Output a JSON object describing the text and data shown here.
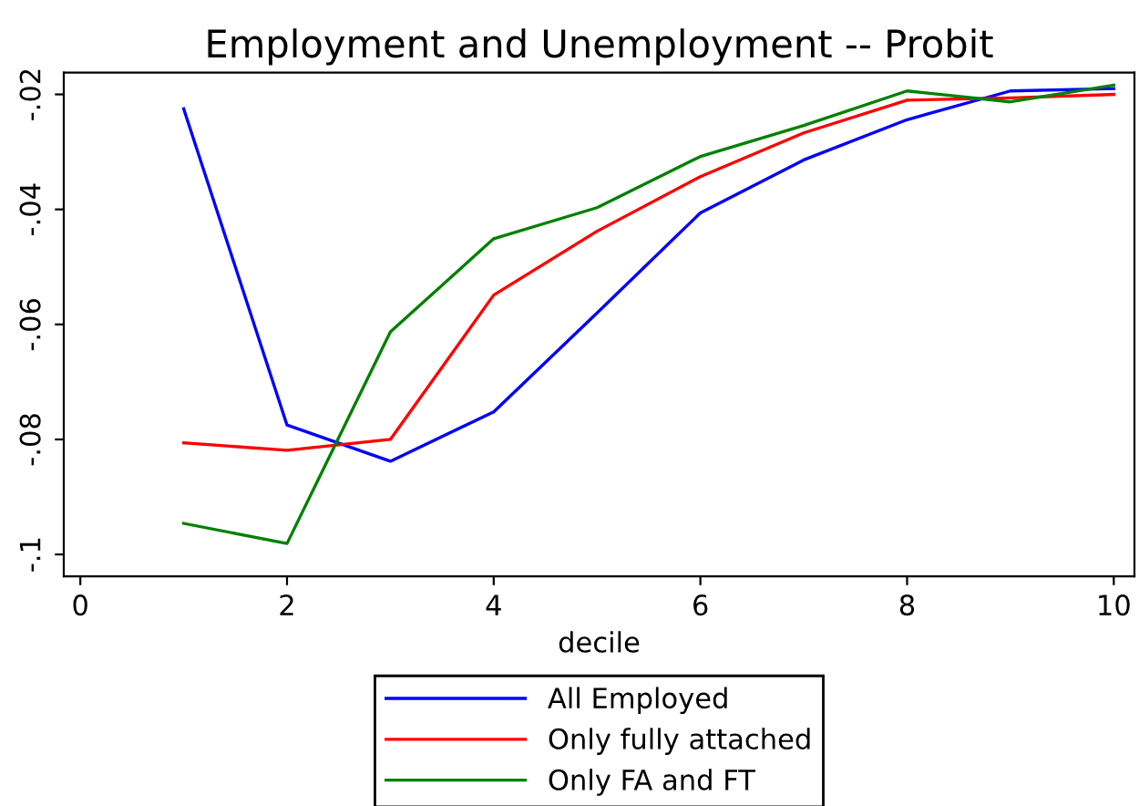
{
  "chart_data": {
    "type": "line",
    "title": "Employment and Unemployment -- Probit",
    "xlabel": "decile",
    "x": [
      1,
      2,
      3,
      4,
      5,
      6,
      7,
      8,
      9,
      10
    ],
    "series": [
      {
        "name": "All Employed",
        "color": "#0000ff",
        "values": [
          -0.0225,
          -0.0775,
          -0.0838,
          -0.0752,
          -0.058,
          -0.0406,
          -0.0314,
          -0.0244,
          -0.0194,
          -0.019
        ]
      },
      {
        "name": "Only fully attached",
        "color": "#ff0000",
        "values": [
          -0.0806,
          -0.0819,
          -0.08,
          -0.0549,
          -0.0438,
          -0.0343,
          -0.0267,
          -0.021,
          -0.0206,
          -0.02
        ]
      },
      {
        "name": "Only FA and FT",
        "color": "#008000",
        "values": [
          -0.0946,
          -0.0981,
          -0.0613,
          -0.0451,
          -0.0397,
          -0.0308,
          -0.0254,
          -0.0194,
          -0.0213,
          -0.0184
        ]
      }
    ],
    "xlim": [
      -0.16,
      10.2
    ],
    "xticks": [
      0,
      2,
      4,
      6,
      8,
      10
    ],
    "ylim": [
      -0.1038,
      -0.0162
    ],
    "yticks": [
      {
        "value": -0.02,
        "label": "-.02"
      },
      {
        "value": -0.04,
        "label": "-.04"
      },
      {
        "value": -0.06,
        "label": "-.06"
      },
      {
        "value": -0.08,
        "label": "-.08"
      },
      {
        "value": -0.1,
        "label": "-.1"
      }
    ],
    "grid": false,
    "legend": "bottom",
    "marker": "none",
    "line_style": "solid"
  }
}
